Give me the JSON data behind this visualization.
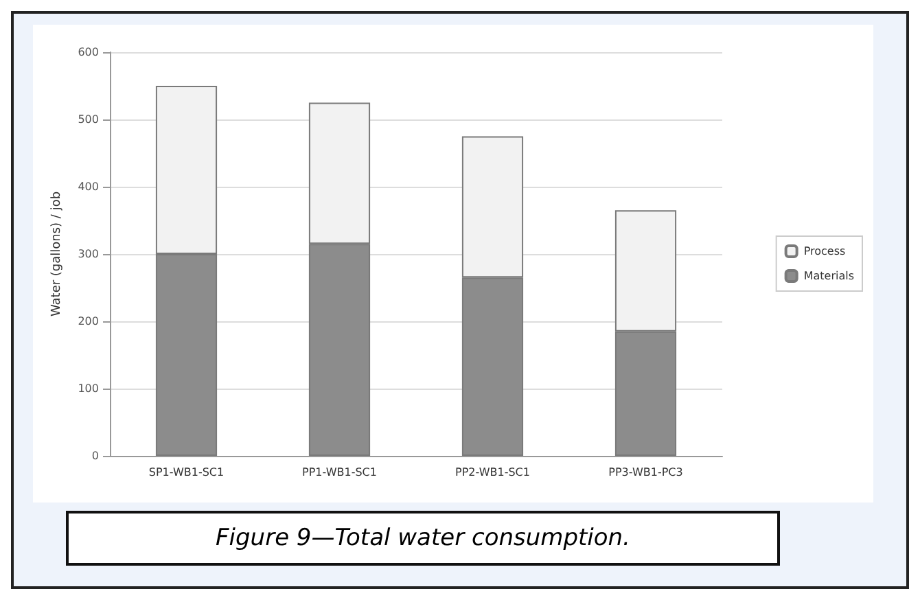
{
  "chart_data": {
    "type": "bar",
    "stacked": true,
    "ylabel": "Water (gallons) / job",
    "categories": [
      "SP1-WB1-SC1",
      "PP1-WB1-SC1",
      "PP2-WB1-SC1",
      "PP3-WB1-PC3"
    ],
    "series": [
      {
        "name": "Materials",
        "color": "#8c8c8c",
        "values": [
          300,
          315,
          265,
          185
        ]
      },
      {
        "name": "Process",
        "color": "#f2f2f2",
        "values": [
          250,
          210,
          210,
          180
        ]
      }
    ],
    "ylim": [
      0,
      600
    ],
    "yticks": [
      0,
      100,
      200,
      300,
      400,
      500,
      600
    ],
    "grid": "y",
    "legend": "right",
    "annotations": [
      "Figure 9—Total water consumption."
    ]
  }
}
